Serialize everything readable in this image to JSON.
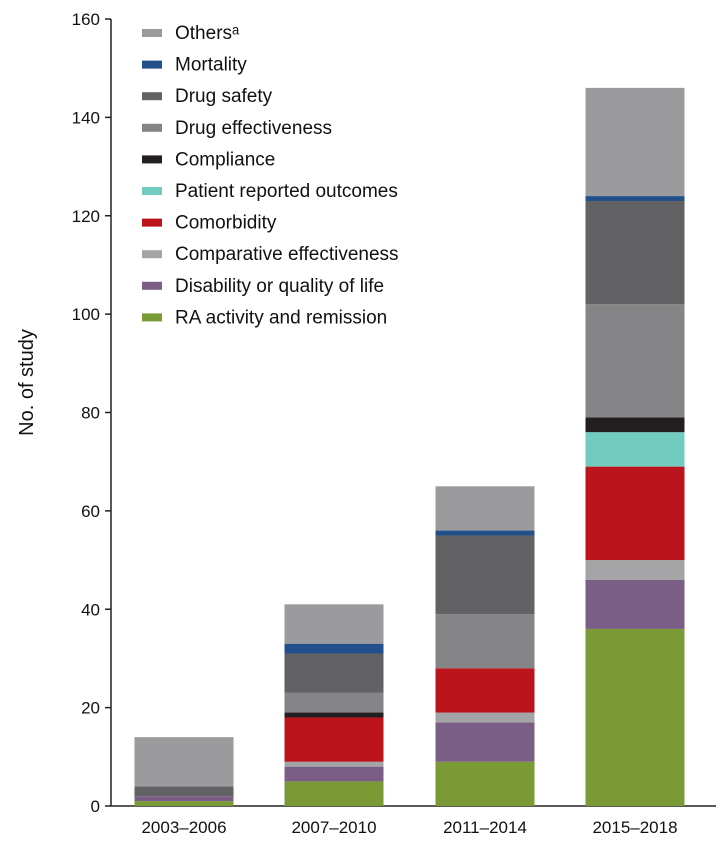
{
  "chart_data": {
    "type": "bar",
    "stacked": true,
    "title": "",
    "xlabel": "",
    "ylabel": "No. of study",
    "ylim": [
      0,
      160
    ],
    "yticks": [
      0,
      20,
      40,
      60,
      80,
      100,
      120,
      140,
      160
    ],
    "categories": [
      "2003–2006",
      "2007–2010",
      "2011–2014",
      "2015–2018"
    ],
    "legend_position": "top-left",
    "series": [
      {
        "name": "RA activity and remission",
        "color": "#7a9a35",
        "values": [
          1,
          5,
          9,
          36
        ]
      },
      {
        "name": "Disability or quality of life",
        "color": "#7b5e86",
        "values": [
          1,
          3,
          8,
          10
        ]
      },
      {
        "name": "Comparative effectiveness",
        "color": "#a4a4a6",
        "values": [
          0,
          1,
          2,
          4
        ]
      },
      {
        "name": "Comorbidity",
        "color": "#bb141c",
        "values": [
          0,
          9,
          9,
          19
        ]
      },
      {
        "name": "Patient reported outcomes",
        "color": "#72cbc0",
        "values": [
          0,
          0,
          0,
          7
        ]
      },
      {
        "name": "Compliance",
        "color": "#231f20",
        "values": [
          0,
          1,
          0,
          3
        ]
      },
      {
        "name": "Drug effectiveness",
        "color": "#858587",
        "values": [
          0,
          4,
          11,
          23
        ]
      },
      {
        "name": "Drug safety",
        "color": "#626264",
        "values": [
          2,
          8,
          16,
          21
        ]
      },
      {
        "name": "Mortality",
        "color": "#234f8b",
        "values": [
          0,
          2,
          1,
          1
        ]
      },
      {
        "name": "Othersᵃ",
        "color": "#9b9b9e",
        "values": [
          10,
          8,
          9,
          22
        ]
      }
    ]
  }
}
